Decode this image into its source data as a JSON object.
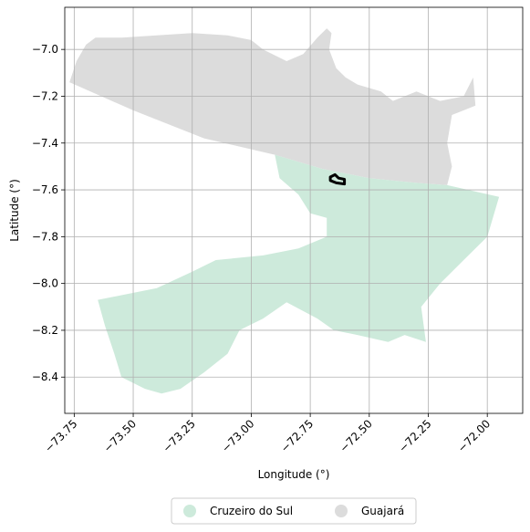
{
  "chart_data": {
    "type": "map",
    "xlabel": "Longitude (°)",
    "ylabel": "Latitude (°)",
    "xlim": [
      -73.79,
      -71.85
    ],
    "ylim": [
      -8.555,
      -6.82
    ],
    "xticks": [
      -73.75,
      -73.5,
      -73.25,
      -73.0,
      -72.75,
      -72.5,
      -72.25,
      -72.0
    ],
    "xtick_labels": [
      "−73.75",
      "−73.50",
      "−73.25",
      "−73.00",
      "−72.75",
      "−72.50",
      "−72.25",
      "−72.00"
    ],
    "yticks": [
      -7.0,
      -7.2,
      -7.4,
      -7.6,
      -7.8,
      -8.0,
      -8.2,
      -8.4
    ],
    "ytick_labels": [
      "−7.0",
      "−7.2",
      "−7.4",
      "−7.6",
      "−7.8",
      "−8.0",
      "−8.2",
      "−8.4"
    ],
    "grid": true,
    "legend_position": "bottom-center",
    "regions": [
      {
        "name": "Guajará",
        "color": "#dcdcdc",
        "coords": [
          [
            -73.77,
            -7.14
          ],
          [
            -73.74,
            -7.05
          ],
          [
            -73.7,
            -6.98
          ],
          [
            -73.66,
            -6.95
          ],
          [
            -73.55,
            -6.95
          ],
          [
            -73.4,
            -6.94
          ],
          [
            -73.25,
            -6.93
          ],
          [
            -73.1,
            -6.94
          ],
          [
            -73.0,
            -6.96
          ],
          [
            -72.95,
            -7.0
          ],
          [
            -72.85,
            -7.05
          ],
          [
            -72.78,
            -7.02
          ],
          [
            -72.72,
            -6.95
          ],
          [
            -72.68,
            -6.91
          ],
          [
            -72.66,
            -6.93
          ],
          [
            -72.67,
            -7.0
          ],
          [
            -72.64,
            -7.08
          ],
          [
            -72.6,
            -7.12
          ],
          [
            -72.55,
            -7.15
          ],
          [
            -72.45,
            -7.18
          ],
          [
            -72.4,
            -7.22
          ],
          [
            -72.3,
            -7.18
          ],
          [
            -72.2,
            -7.22
          ],
          [
            -72.1,
            -7.2
          ],
          [
            -72.06,
            -7.12
          ],
          [
            -72.05,
            -7.24
          ],
          [
            -72.15,
            -7.28
          ],
          [
            -72.17,
            -7.4
          ],
          [
            -72.15,
            -7.5
          ],
          [
            -72.17,
            -7.58
          ],
          [
            -72.3,
            -7.57
          ],
          [
            -72.5,
            -7.55
          ],
          [
            -72.7,
            -7.51
          ],
          [
            -72.9,
            -7.45
          ],
          [
            -73.2,
            -7.38
          ],
          [
            -73.5,
            -7.26
          ],
          [
            -73.77,
            -7.14
          ]
        ]
      },
      {
        "name": "Cruzeiro do Sul",
        "color": "#cdeadb",
        "coords": [
          [
            -72.9,
            -7.45
          ],
          [
            -72.7,
            -7.51
          ],
          [
            -72.5,
            -7.55
          ],
          [
            -72.3,
            -7.57
          ],
          [
            -72.17,
            -7.58
          ],
          [
            -71.95,
            -7.63
          ],
          [
            -72.0,
            -7.8
          ],
          [
            -72.1,
            -7.9
          ],
          [
            -72.2,
            -8.0
          ],
          [
            -72.28,
            -8.1
          ],
          [
            -72.26,
            -8.25
          ],
          [
            -72.35,
            -8.22
          ],
          [
            -72.42,
            -8.25
          ],
          [
            -72.55,
            -8.22
          ],
          [
            -72.65,
            -8.2
          ],
          [
            -72.72,
            -8.15
          ],
          [
            -72.85,
            -8.08
          ],
          [
            -72.95,
            -8.15
          ],
          [
            -73.05,
            -8.2
          ],
          [
            -73.1,
            -8.3
          ],
          [
            -73.2,
            -8.38
          ],
          [
            -73.3,
            -8.45
          ],
          [
            -73.38,
            -8.47
          ],
          [
            -73.45,
            -8.45
          ],
          [
            -73.55,
            -8.4
          ],
          [
            -73.58,
            -8.3
          ],
          [
            -73.62,
            -8.18
          ],
          [
            -73.65,
            -8.07
          ],
          [
            -73.55,
            -8.05
          ],
          [
            -73.4,
            -8.02
          ],
          [
            -73.25,
            -7.95
          ],
          [
            -73.15,
            -7.9
          ],
          [
            -72.95,
            -7.88
          ],
          [
            -72.8,
            -7.85
          ],
          [
            -72.68,
            -7.8
          ],
          [
            -72.68,
            -7.72
          ],
          [
            -72.75,
            -7.7
          ],
          [
            -72.8,
            -7.62
          ],
          [
            -72.88,
            -7.55
          ],
          [
            -72.9,
            -7.45
          ]
        ]
      }
    ],
    "highlight": {
      "type": "outline",
      "color": "#000000",
      "coords": [
        [
          -72.665,
          -7.545
        ],
        [
          -72.645,
          -7.535
        ],
        [
          -72.63,
          -7.55
        ],
        [
          -72.605,
          -7.555
        ],
        [
          -72.605,
          -7.575
        ],
        [
          -72.64,
          -7.57
        ],
        [
          -72.665,
          -7.56
        ],
        [
          -72.665,
          -7.545
        ]
      ]
    }
  },
  "legend": {
    "items": [
      {
        "label": "Cruzeiro do Sul",
        "color": "#cdeadb"
      },
      {
        "label": "Guajará",
        "color": "#dcdcdc"
      }
    ]
  }
}
